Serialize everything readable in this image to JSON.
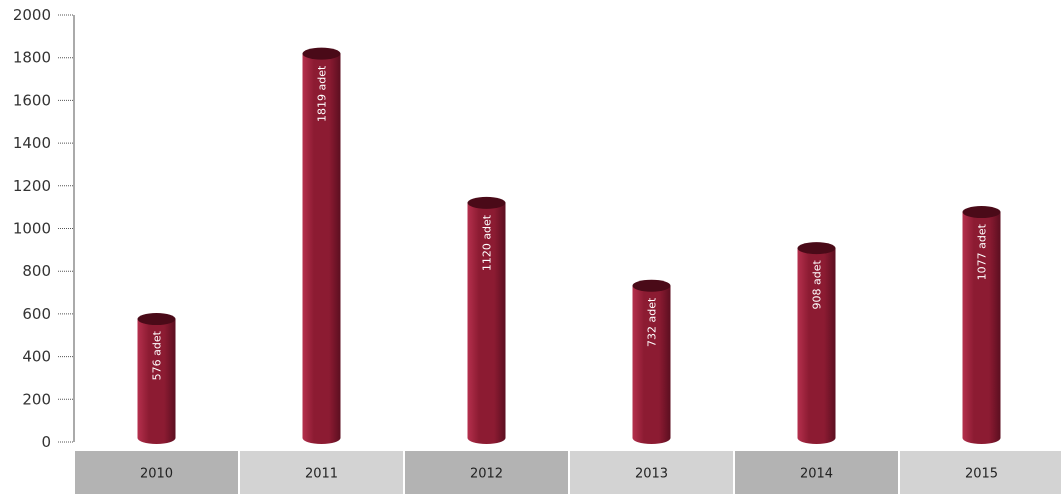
{
  "chart_data": {
    "type": "bar",
    "categories": [
      "2010",
      "2011",
      "2012",
      "2013",
      "2014",
      "2015"
    ],
    "values": [
      576,
      1819,
      1120,
      732,
      908,
      1077
    ],
    "value_labels": [
      "576 adet",
      "1819 adet",
      "1120 adet",
      "732 adet",
      "908 adet",
      "1077 adet"
    ],
    "title": "",
    "xlabel": "",
    "ylabel": "",
    "ylim": [
      0,
      2000
    ],
    "yticks": [
      0,
      200,
      400,
      600,
      800,
      1000,
      1200,
      1400,
      1600,
      1800,
      2000
    ],
    "ytick_labels": [
      "0",
      "200",
      "400",
      "600",
      "800",
      "1000",
      "1200",
      "1400",
      "1600",
      "1800",
      "2000"
    ],
    "grid": false,
    "legend": "none",
    "bar_style": "cylinder",
    "colors": {
      "bar_main": "#8c1b32",
      "bar_light": "#b5304d",
      "bar_dark": "#5c0f20",
      "bar_top": "#4a0a18",
      "category_cell_dark": "#b3b3b3",
      "category_cell_light": "#d3d3d3",
      "axis": "#555555"
    }
  }
}
